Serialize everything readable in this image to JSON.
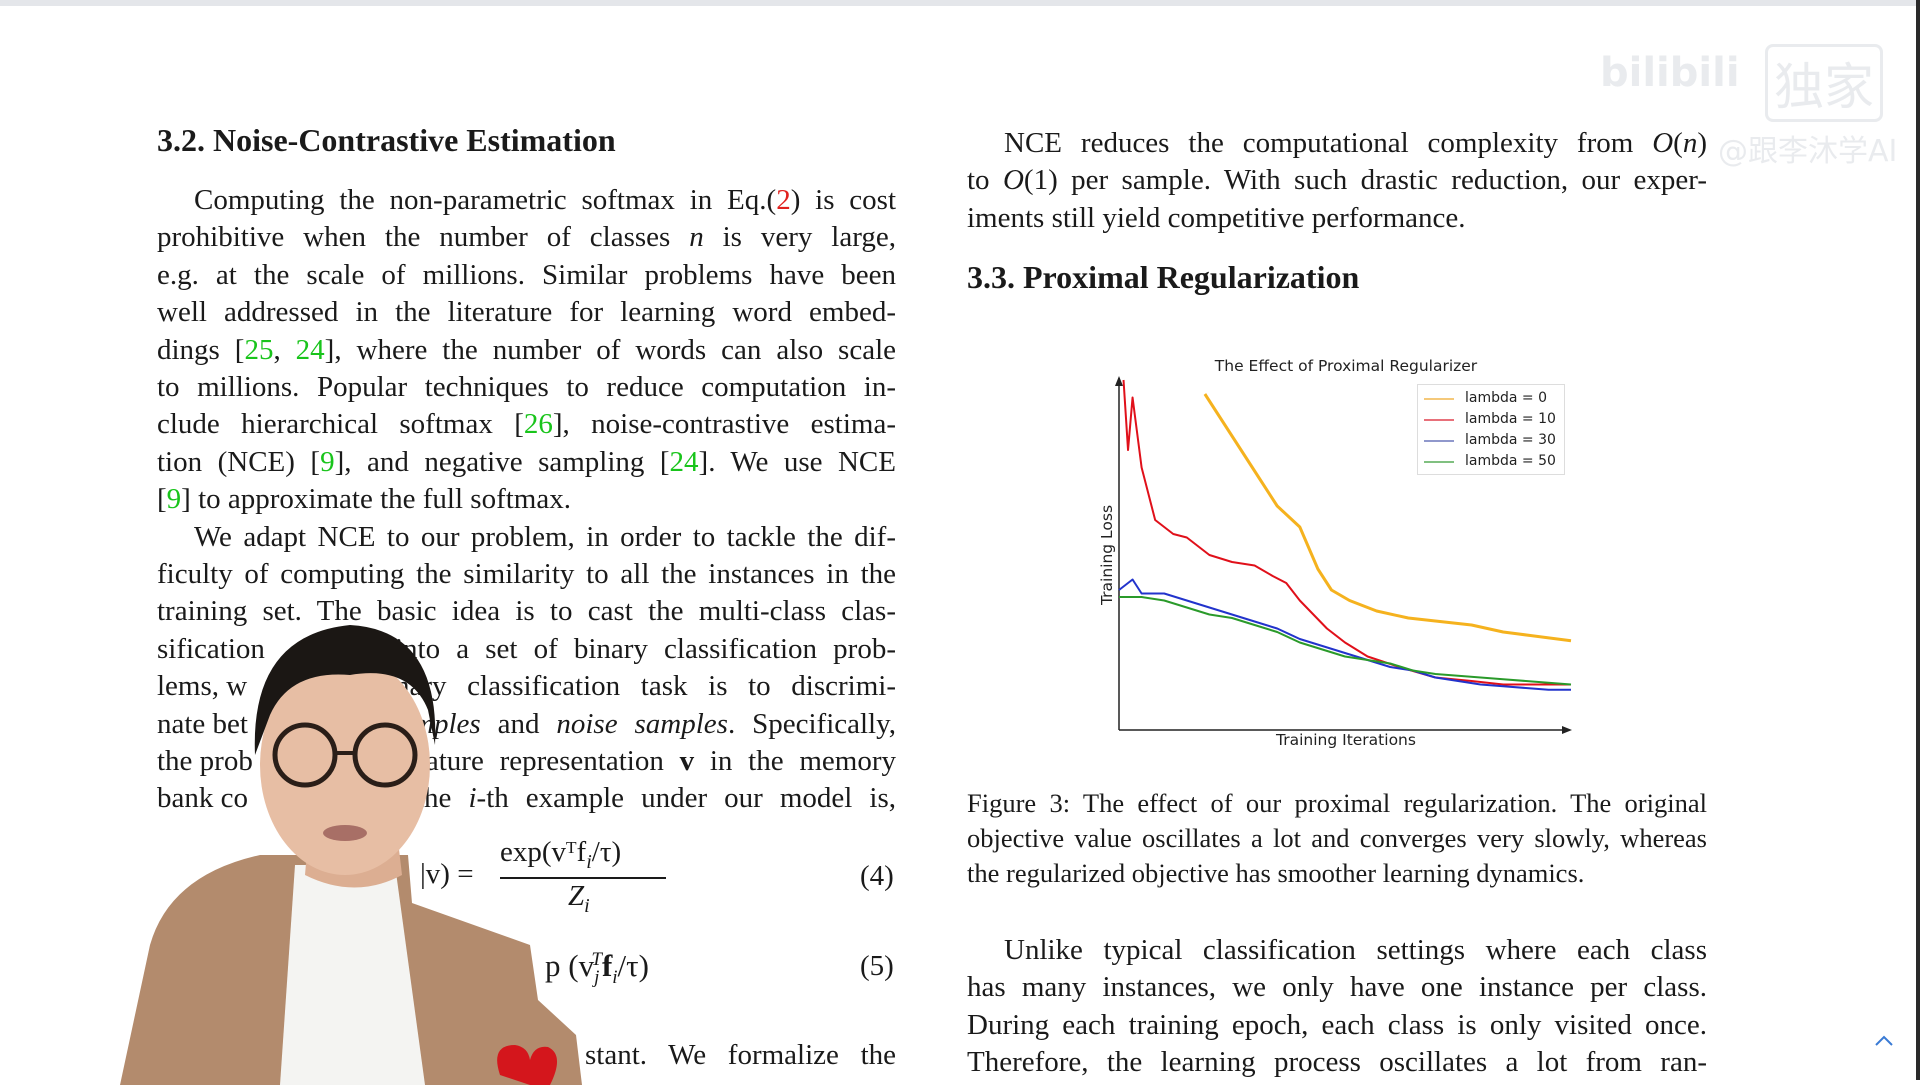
{
  "watermark": {
    "logo": "bilibili",
    "badge": "独家",
    "author": "@跟李沐学AI"
  },
  "left": {
    "heading": "3.2. Noise-Contrastive Estimation",
    "lines": [
      [
        {
          "t": "Computing the non-parametric softmax in Eq.("
        },
        {
          "t": "2",
          "s": "r"
        },
        {
          "t": ") is cost"
        }
      ],
      [
        {
          "t": "prohibitive when the number of classes "
        },
        {
          "t": "n",
          "s": "m"
        },
        {
          "t": " is very large,"
        }
      ],
      [
        {
          "t": "e.g.  at the scale of millions.  Similar problems have been"
        }
      ],
      [
        {
          "t": "well addressed in the literature for learning word embed-"
        }
      ],
      [
        {
          "t": "dings ["
        },
        {
          "t": "25",
          "s": "c"
        },
        {
          "t": ", "
        },
        {
          "t": "24",
          "s": "c"
        },
        {
          "t": "], where the number of words can also scale"
        }
      ],
      [
        {
          "t": "to millions.  Popular techniques to reduce computation in-"
        }
      ],
      [
        {
          "t": "clude hierarchical softmax ["
        },
        {
          "t": "26",
          "s": "c"
        },
        {
          "t": "], noise-contrastive estima-"
        }
      ],
      [
        {
          "t": "tion (NCE)  ["
        },
        {
          "t": "9",
          "s": "c"
        },
        {
          "t": "], and negative sampling ["
        },
        {
          "t": "24",
          "s": "c"
        },
        {
          "t": "].  We use NCE"
        }
      ],
      [
        {
          "t": "["
        },
        {
          "t": "9",
          "s": "c"
        },
        {
          "t": "] to approximate the full softmax."
        }
      ],
      [
        {
          "t": "We adapt NCE to our problem, in order to tackle the dif-"
        }
      ],
      [
        {
          "t": "ficulty of computing the similarity to all the instances in the"
        }
      ],
      [
        {
          "t": "training set.  The basic idea is to cast the multi-class clas-"
        }
      ]
    ],
    "split_lines": [
      {
        "left": [
          {
            "t": "sification"
          }
        ],
        "right": [
          {
            "t": "into a set of binary classification prob-"
          }
        ]
      },
      {
        "left": [
          {
            "t": "lems, w"
          }
        ],
        "right": [
          {
            "t": "nary classification task is to discrimi-"
          }
        ]
      },
      {
        "left": [
          {
            "t": "nate bet"
          }
        ],
        "right": [
          {
            "t": "mples",
            "s": "i"
          },
          {
            "t": " and "
          },
          {
            "t": "noise samples",
            "s": "i"
          },
          {
            "t": ". Specifically,"
          }
        ]
      },
      {
        "left": [
          {
            "t": "the prob"
          }
        ],
        "right": [
          {
            "t": "eature representation "
          },
          {
            "t": "v",
            "s": "b"
          },
          {
            "t": " in the memory"
          }
        ]
      },
      {
        "left": [
          {
            "t": "bank co"
          }
        ],
        "right": [
          {
            "t": "the "
          },
          {
            "t": "i",
            "s": "m"
          },
          {
            "t": "-th example under our model is,"
          }
        ]
      }
    ],
    "eq4": {
      "lhs": "|v) =",
      "num": "exp(vᵀf",
      "num_sub": "i",
      "num_end": "/τ)",
      "den": "Z",
      "den_sub": "i",
      "tag": "(4)"
    },
    "eq5": {
      "text": "p (v",
      "sub": "j",
      "sup": "T",
      "rest": "f",
      "rest_sub": "i",
      "end": "/τ)",
      "tag": "(5)"
    },
    "last_line": "stant.  We formalize the"
  },
  "right": {
    "lines": [
      [
        {
          "t": "NCE reduces the computational complexity from "
        },
        {
          "t": "O",
          "s": "m"
        },
        {
          "t": "("
        },
        {
          "t": "n",
          "s": "m"
        },
        {
          "t": ")"
        }
      ],
      [
        {
          "t": "to "
        },
        {
          "t": "O",
          "s": "m"
        },
        {
          "t": "(1) per sample. With such drastic reduction, our exper-"
        }
      ],
      [
        {
          "t": "iments still yield competitive performance."
        }
      ]
    ],
    "heading": "3.3. Proximal Regularization",
    "caption": [
      "Figure 3: The effect of our proximal regularization. The original",
      "objective value oscillates a lot and converges very slowly, whereas",
      "the regularized objective has smoother learning dynamics."
    ],
    "para": [
      "Unlike typical classification settings where each class",
      "has many instances, we only have one instance per class.",
      "During each training epoch, each class is only visited once.",
      "Therefore, the learning process oscillates a lot from ran-"
    ]
  },
  "chart_data": {
    "type": "line",
    "title": "The Effect of Proximal Regularizer",
    "xlabel": "Training Iterations",
    "ylabel": "Training Loss",
    "ticks": "none",
    "legend_position": "top-right",
    "grid": false,
    "series": [
      {
        "name": "lambda = 0",
        "color": "#f5b21e",
        "x": [
          19,
          23,
          27,
          31,
          35,
          40,
          44,
          47,
          51,
          57,
          64,
          71,
          78,
          85,
          91,
          100
        ],
        "y": [
          96,
          88,
          80,
          72,
          64,
          58,
          46,
          40,
          37,
          34,
          32,
          31,
          30,
          28,
          27,
          25.5
        ]
      },
      {
        "name": "lambda = 10",
        "color": "#e0101a",
        "x": [
          1,
          2,
          3,
          5,
          8,
          12,
          15,
          20,
          25,
          30,
          34,
          37,
          40,
          43,
          46,
          50,
          55,
          62,
          70,
          78,
          85,
          92,
          100
        ],
        "y": [
          100,
          80,
          95,
          75,
          60,
          56,
          55,
          50,
          48,
          47,
          44,
          42,
          37,
          33,
          29,
          25,
          21,
          18,
          15,
          14,
          13,
          13,
          13
        ]
      },
      {
        "name": "lambda = 30",
        "color": "#2233cc",
        "x": [
          0,
          3,
          5,
          10,
          15,
          20,
          25,
          30,
          35,
          40,
          45,
          50,
          55,
          60,
          65,
          70,
          75,
          80,
          85,
          90,
          95,
          100
        ],
        "y": [
          40,
          43,
          39,
          39,
          37,
          35,
          33,
          31,
          29,
          26,
          24,
          22,
          20,
          18,
          17,
          15,
          14,
          13,
          12.5,
          12,
          11.5,
          11.5
        ]
      },
      {
        "name": "lambda = 50",
        "color": "#2a9a2a",
        "x": [
          0,
          5,
          10,
          15,
          20,
          25,
          30,
          35,
          40,
          45,
          50,
          55,
          60,
          65,
          70,
          75,
          80,
          85,
          90,
          95,
          100
        ],
        "y": [
          38,
          38,
          37,
          35,
          33,
          32,
          30,
          28,
          25,
          23,
          21,
          20,
          19,
          17,
          16,
          15.5,
          15,
          14.5,
          14,
          13.5,
          13
        ]
      }
    ]
  },
  "colors": {
    "citation": "#19c41b",
    "equation_ref": "#e0201d",
    "scroll_icon": "#3a7bd5"
  },
  "icons": {
    "scroll_top": "chevron-up-icon"
  }
}
